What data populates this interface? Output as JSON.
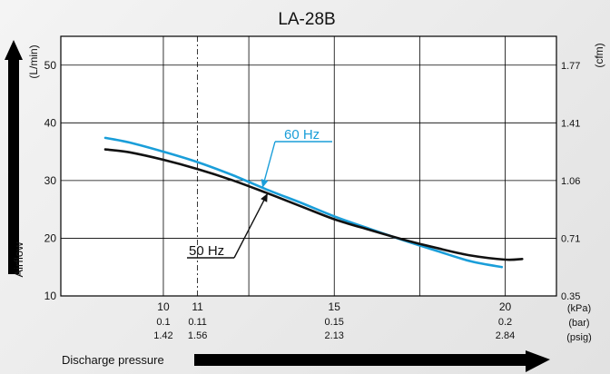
{
  "chart_data": {
    "type": "line",
    "title": "LA-28B",
    "ylabel": "Airflow",
    "xlabel": "Discharge pressure",
    "left_unit": "(L/min)",
    "right_unit": "(cfm)",
    "ylim": [
      10,
      55
    ],
    "xlim": [
      7,
      21.5
    ],
    "grid": true,
    "y_ticks": [
      {
        "value": 10,
        "label": "10"
      },
      {
        "value": 20,
        "label": "20"
      },
      {
        "value": 30,
        "label": "30"
      },
      {
        "value": 40,
        "label": "40"
      },
      {
        "value": 50,
        "label": "50"
      }
    ],
    "right_ticks": [
      {
        "value": 10,
        "label": "0.35"
      },
      {
        "value": 20,
        "label": "0.71"
      },
      {
        "value": 30,
        "label": "1.06"
      },
      {
        "value": 40,
        "label": "1.41"
      },
      {
        "value": 50,
        "label": "1.77"
      }
    ],
    "x_gridlines": [
      10,
      11,
      12.5,
      15,
      17.5,
      20
    ],
    "x_dashed": [
      11
    ],
    "x_ticks": [
      {
        "value": 10,
        "kpa": "10",
        "bar": "0.1",
        "psig": "1.42"
      },
      {
        "value": 11,
        "kpa": "11",
        "bar": "0.11",
        "psig": "1.56"
      },
      {
        "value": 15,
        "kpa": "15",
        "bar": "0.15",
        "psig": "2.13"
      },
      {
        "value": 20,
        "kpa": "20",
        "bar": "0.2",
        "psig": "2.84"
      }
    ],
    "x_units": [
      "(kPa)",
      "(bar)",
      "(psig)"
    ],
    "series": [
      {
        "name": "60 Hz",
        "color": "#1a9ed9",
        "x": [
          8.3,
          9,
          10,
          11,
          12,
          13,
          14,
          15,
          16,
          17,
          18,
          19,
          19.9
        ],
        "y": [
          37.4,
          36.6,
          35.0,
          33.2,
          31.0,
          28.5,
          26.2,
          23.8,
          21.7,
          19.7,
          17.8,
          16.0,
          15.0
        ]
      },
      {
        "name": "50 Hz",
        "color": "#111111",
        "x": [
          8.3,
          9,
          10,
          11,
          12,
          13,
          14,
          15,
          16,
          17,
          18,
          19,
          20,
          20.5
        ],
        "y": [
          35.4,
          34.9,
          33.6,
          32.0,
          30.1,
          27.9,
          25.6,
          23.3,
          21.5,
          19.8,
          18.3,
          17.0,
          16.3,
          16.4
        ]
      }
    ]
  }
}
